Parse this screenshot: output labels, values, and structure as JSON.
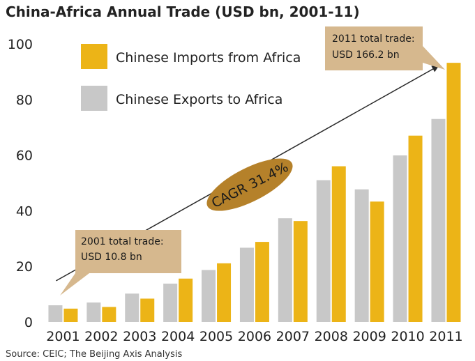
{
  "chart_data": {
    "type": "bar",
    "title": "China-Africa Annual Trade (USD bn, 2001-11)",
    "categories": [
      "2001",
      "2002",
      "2003",
      "2004",
      "2005",
      "2006",
      "2007",
      "2008",
      "2009",
      "2010",
      "2011"
    ],
    "series": [
      {
        "name": "Chinese Exports to Africa",
        "color": "#c8c8c8",
        "values": [
          6.0,
          7.0,
          10.2,
          13.8,
          18.7,
          26.7,
          37.3,
          51.0,
          47.7,
          59.9,
          73.0
        ]
      },
      {
        "name": "Chinese Imports from Africa",
        "color": "#ecb417",
        "values": [
          4.8,
          5.4,
          8.4,
          15.6,
          21.1,
          28.8,
          36.3,
          56.0,
          43.3,
          67.0,
          93.2
        ]
      }
    ],
    "legend_order": [
      "Chinese Imports from Africa",
      "Chinese Exports to Africa"
    ],
    "legend_position": "top-left",
    "yticks": [
      "0",
      "20",
      "40",
      "60",
      "80",
      "100"
    ],
    "ylim": [
      0,
      100
    ],
    "grid": false,
    "annotations": {
      "callout_2001": [
        "2001 total trade:",
        "USD 10.8 bn"
      ],
      "callout_2011": [
        "2011 total trade:",
        "USD 166.2 bn"
      ],
      "cagr_label": "CAGR 31.4%",
      "trend_arrow_from": {
        "x": "2001",
        "y": 10.8
      },
      "trend_arrow_to": {
        "x": "2011",
        "y": 93.2
      }
    },
    "source": "Source: CEIC; The Beijing Axis Analysis",
    "colors": {
      "callout_fill": "#d6b88e",
      "cagr_fill": "#b5812a",
      "text": "#222222"
    }
  }
}
